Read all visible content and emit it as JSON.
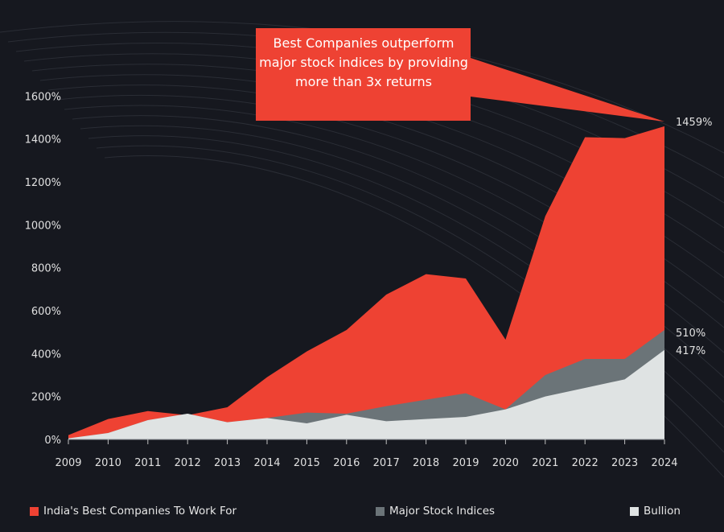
{
  "chart_data": {
    "type": "area",
    "x": [
      2009,
      2010,
      2011,
      2012,
      2013,
      2014,
      2015,
      2016,
      2017,
      2018,
      2019,
      2020,
      2021,
      2022,
      2023,
      2024
    ],
    "ylim": [
      0,
      1600
    ],
    "yticks": [
      "0%",
      "200%",
      "400%",
      "600%",
      "800%",
      "1000%",
      "1200%",
      "1400%",
      "1600%"
    ],
    "ytick_values": [
      0,
      200,
      400,
      600,
      800,
      1000,
      1200,
      1400,
      1600
    ],
    "grid": false,
    "legend_position": "bottom",
    "series": [
      {
        "name": "India's Best Companies To Work For",
        "color": "#ee4233",
        "values": [
          20,
          95,
          132,
          113,
          150,
          290,
          410,
          510,
          675,
          770,
          750,
          465,
          1040,
          1408,
          1404,
          1459
        ]
      },
      {
        "name": "Major Stock Indices",
        "color": "#6b7478",
        "values": [
          5,
          30,
          90,
          120,
          80,
          100,
          125,
          120,
          155,
          185,
          215,
          140,
          300,
          375,
          375,
          510
        ]
      },
      {
        "name": "Bullion",
        "color": "#dfe3e3",
        "values": [
          5,
          30,
          90,
          120,
          80,
          100,
          75,
          115,
          85,
          95,
          105,
          140,
          200,
          240,
          280,
          417
        ]
      }
    ],
    "end_labels": [
      "1459%",
      "510%",
      "417%"
    ],
    "annotation": "Best Companies outperform major stock indices by providing more than 3x returns"
  }
}
